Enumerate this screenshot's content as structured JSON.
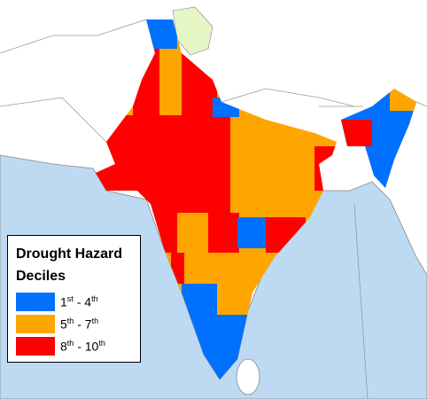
{
  "legend": {
    "title": "Drought Hazard Deciles",
    "items": [
      {
        "from": "1",
        "from_sup": "st",
        "sep": " - ",
        "to": "4",
        "to_sup": "th",
        "color": "#0070ff"
      },
      {
        "from": "5",
        "from_sup": "th",
        "sep": " - ",
        "to": "7",
        "to_sup": "th",
        "color": "#ffa500"
      },
      {
        "from": "8",
        "from_sup": "th",
        "sep": " - ",
        "to": "10",
        "to_sup": "th",
        "color": "#ff0000"
      }
    ]
  }
}
